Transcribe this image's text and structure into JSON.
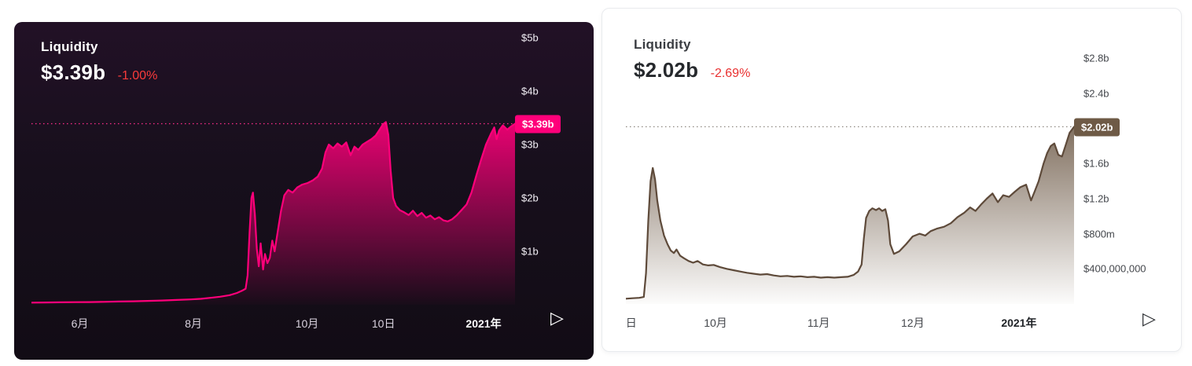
{
  "charts": [
    {
      "title": "Liquidity",
      "value": "$3.39b",
      "change": "-1.00%",
      "play_glyph": "▷",
      "colors": {
        "line": "#ff007a",
        "fill_top": "rgba(255,0,122,0.9)",
        "fill_bottom": "rgba(255,0,122,0.02)",
        "dotted": "#ff2d8a",
        "badge_bg": "#ff007a",
        "badge_text": "#ffffff",
        "change": "#fb3b3b"
      },
      "chart_data": {
        "type": "area",
        "title": "Liquidity",
        "current_value_b": 3.39,
        "current_label": "$3.39b",
        "ylim": [
          0,
          5.147
        ],
        "y_ticks": [
          {
            "v": 5,
            "label": "$5b"
          },
          {
            "v": 4,
            "label": "$4b"
          },
          {
            "v": 3,
            "label": "$3b"
          },
          {
            "v": 2,
            "label": "$2b"
          },
          {
            "v": 1,
            "label": "$1b"
          }
        ],
        "x_ticks": [
          {
            "f": 0.1,
            "label": "6月"
          },
          {
            "f": 0.335,
            "label": "8月"
          },
          {
            "f": 0.57,
            "label": "10月"
          },
          {
            "f": 0.728,
            "label": "10日"
          },
          {
            "f": 0.935,
            "label": "2021年",
            "bold": true
          }
        ],
        "points": [
          [
            0.0,
            0.04
          ],
          [
            0.03,
            0.042
          ],
          [
            0.06,
            0.045
          ],
          [
            0.09,
            0.048
          ],
          [
            0.12,
            0.05
          ],
          [
            0.15,
            0.055
          ],
          [
            0.18,
            0.06
          ],
          [
            0.21,
            0.065
          ],
          [
            0.24,
            0.072
          ],
          [
            0.27,
            0.08
          ],
          [
            0.3,
            0.09
          ],
          [
            0.33,
            0.1
          ],
          [
            0.35,
            0.11
          ],
          [
            0.37,
            0.13
          ],
          [
            0.39,
            0.15
          ],
          [
            0.41,
            0.18
          ],
          [
            0.425,
            0.22
          ],
          [
            0.435,
            0.26
          ],
          [
            0.443,
            0.3
          ],
          [
            0.447,
            0.55
          ],
          [
            0.451,
            1.35
          ],
          [
            0.455,
            2.0
          ],
          [
            0.458,
            2.1
          ],
          [
            0.462,
            1.7
          ],
          [
            0.466,
            1.05
          ],
          [
            0.47,
            0.72
          ],
          [
            0.474,
            1.15
          ],
          [
            0.479,
            0.66
          ],
          [
            0.483,
            0.95
          ],
          [
            0.488,
            0.78
          ],
          [
            0.493,
            0.88
          ],
          [
            0.498,
            1.2
          ],
          [
            0.503,
            1.0
          ],
          [
            0.509,
            1.35
          ],
          [
            0.516,
            1.75
          ],
          [
            0.523,
            2.05
          ],
          [
            0.531,
            2.15
          ],
          [
            0.54,
            2.1
          ],
          [
            0.55,
            2.2
          ],
          [
            0.56,
            2.25
          ],
          [
            0.571,
            2.28
          ],
          [
            0.582,
            2.33
          ],
          [
            0.592,
            2.4
          ],
          [
            0.601,
            2.55
          ],
          [
            0.608,
            2.85
          ],
          [
            0.615,
            3.0
          ],
          [
            0.624,
            2.93
          ],
          [
            0.633,
            3.02
          ],
          [
            0.642,
            2.96
          ],
          [
            0.651,
            3.04
          ],
          [
            0.66,
            2.8
          ],
          [
            0.668,
            2.96
          ],
          [
            0.676,
            2.9
          ],
          [
            0.685,
            3.0
          ],
          [
            0.694,
            3.05
          ],
          [
            0.703,
            3.1
          ],
          [
            0.712,
            3.17
          ],
          [
            0.72,
            3.28
          ],
          [
            0.727,
            3.38
          ],
          [
            0.733,
            3.42
          ],
          [
            0.738,
            3.18
          ],
          [
            0.743,
            2.5
          ],
          [
            0.748,
            2.0
          ],
          [
            0.754,
            1.85
          ],
          [
            0.762,
            1.77
          ],
          [
            0.771,
            1.73
          ],
          [
            0.78,
            1.68
          ],
          [
            0.789,
            1.76
          ],
          [
            0.798,
            1.66
          ],
          [
            0.807,
            1.72
          ],
          [
            0.816,
            1.63
          ],
          [
            0.825,
            1.67
          ],
          [
            0.834,
            1.6
          ],
          [
            0.843,
            1.64
          ],
          [
            0.852,
            1.58
          ],
          [
            0.861,
            1.56
          ],
          [
            0.87,
            1.6
          ],
          [
            0.88,
            1.68
          ],
          [
            0.89,
            1.78
          ],
          [
            0.9,
            1.88
          ],
          [
            0.91,
            2.1
          ],
          [
            0.92,
            2.42
          ],
          [
            0.93,
            2.72
          ],
          [
            0.94,
            3.0
          ],
          [
            0.95,
            3.2
          ],
          [
            0.957,
            3.32
          ],
          [
            0.962,
            3.1
          ],
          [
            0.967,
            3.26
          ],
          [
            0.975,
            3.36
          ],
          [
            0.984,
            3.28
          ],
          [
            0.992,
            3.34
          ],
          [
            1.0,
            3.39
          ]
        ]
      }
    },
    {
      "title": "Liquidity",
      "value": "$2.02b",
      "change": "-2.69%",
      "play_glyph": "▷",
      "colors": {
        "line": "#5e4a3a",
        "fill_top": "rgba(107,87,68,0.85)",
        "fill_bottom": "rgba(107,87,68,0.02)",
        "dotted": "#8f8880",
        "badge_bg": "#6e5a46",
        "badge_text": "#ffffff",
        "change": "#e93030"
      },
      "chart_data": {
        "type": "area",
        "title": "Liquidity",
        "current_value_b": 2.02,
        "current_label": "$2.02b",
        "ylim": [
          0,
          3.187
        ],
        "y_ticks": [
          {
            "v": 2.8,
            "label": "$2.8b"
          },
          {
            "v": 2.4,
            "label": "$2.4b"
          },
          {
            "v": 1.6,
            "label": "$1.6b"
          },
          {
            "v": 1.2,
            "label": "$1.2b"
          },
          {
            "v": 0.8,
            "label": "$800m"
          },
          {
            "v": 0.4,
            "label": "$400,000,000"
          }
        ],
        "x_ticks": [
          {
            "f": 0.012,
            "label": "日"
          },
          {
            "f": 0.2,
            "label": "10月"
          },
          {
            "f": 0.43,
            "label": "11月"
          },
          {
            "f": 0.64,
            "label": "12月"
          },
          {
            "f": 0.877,
            "label": "2021年",
            "bold": true
          }
        ],
        "points": [
          [
            0.0,
            0.06
          ],
          [
            0.015,
            0.065
          ],
          [
            0.03,
            0.07
          ],
          [
            0.04,
            0.08
          ],
          [
            0.045,
            0.35
          ],
          [
            0.05,
            0.95
          ],
          [
            0.055,
            1.4
          ],
          [
            0.06,
            1.55
          ],
          [
            0.065,
            1.42
          ],
          [
            0.07,
            1.18
          ],
          [
            0.077,
            0.95
          ],
          [
            0.085,
            0.78
          ],
          [
            0.093,
            0.68
          ],
          [
            0.1,
            0.61
          ],
          [
            0.107,
            0.58
          ],
          [
            0.113,
            0.62
          ],
          [
            0.121,
            0.55
          ],
          [
            0.13,
            0.52
          ],
          [
            0.14,
            0.49
          ],
          [
            0.15,
            0.47
          ],
          [
            0.16,
            0.49
          ],
          [
            0.172,
            0.45
          ],
          [
            0.184,
            0.44
          ],
          [
            0.196,
            0.445
          ],
          [
            0.21,
            0.42
          ],
          [
            0.225,
            0.4
          ],
          [
            0.24,
            0.385
          ],
          [
            0.255,
            0.37
          ],
          [
            0.27,
            0.355
          ],
          [
            0.285,
            0.345
          ],
          [
            0.3,
            0.335
          ],
          [
            0.315,
            0.34
          ],
          [
            0.33,
            0.325
          ],
          [
            0.345,
            0.315
          ],
          [
            0.36,
            0.32
          ],
          [
            0.375,
            0.31
          ],
          [
            0.39,
            0.315
          ],
          [
            0.405,
            0.305
          ],
          [
            0.42,
            0.31
          ],
          [
            0.435,
            0.3
          ],
          [
            0.45,
            0.305
          ],
          [
            0.465,
            0.3
          ],
          [
            0.48,
            0.305
          ],
          [
            0.495,
            0.31
          ],
          [
            0.508,
            0.33
          ],
          [
            0.518,
            0.37
          ],
          [
            0.526,
            0.45
          ],
          [
            0.531,
            0.75
          ],
          [
            0.536,
            0.98
          ],
          [
            0.543,
            1.06
          ],
          [
            0.55,
            1.09
          ],
          [
            0.558,
            1.07
          ],
          [
            0.565,
            1.09
          ],
          [
            0.572,
            1.06
          ],
          [
            0.579,
            1.08
          ],
          [
            0.585,
            0.95
          ],
          [
            0.59,
            0.68
          ],
          [
            0.598,
            0.57
          ],
          [
            0.61,
            0.6
          ],
          [
            0.625,
            0.68
          ],
          [
            0.64,
            0.77
          ],
          [
            0.655,
            0.8
          ],
          [
            0.668,
            0.78
          ],
          [
            0.68,
            0.83
          ],
          [
            0.695,
            0.86
          ],
          [
            0.71,
            0.88
          ],
          [
            0.725,
            0.92
          ],
          [
            0.74,
            0.99
          ],
          [
            0.755,
            1.04
          ],
          [
            0.768,
            1.1
          ],
          [
            0.78,
            1.06
          ],
          [
            0.792,
            1.13
          ],
          [
            0.805,
            1.2
          ],
          [
            0.818,
            1.26
          ],
          [
            0.83,
            1.16
          ],
          [
            0.842,
            1.24
          ],
          [
            0.855,
            1.22
          ],
          [
            0.868,
            1.28
          ],
          [
            0.88,
            1.33
          ],
          [
            0.893,
            1.36
          ],
          [
            0.904,
            1.18
          ],
          [
            0.912,
            1.28
          ],
          [
            0.921,
            1.4
          ],
          [
            0.932,
            1.6
          ],
          [
            0.94,
            1.72
          ],
          [
            0.948,
            1.8
          ],
          [
            0.956,
            1.83
          ],
          [
            0.965,
            1.7
          ],
          [
            0.973,
            1.68
          ],
          [
            0.982,
            1.82
          ],
          [
            0.99,
            1.95
          ],
          [
            1.0,
            2.02
          ]
        ]
      }
    }
  ]
}
